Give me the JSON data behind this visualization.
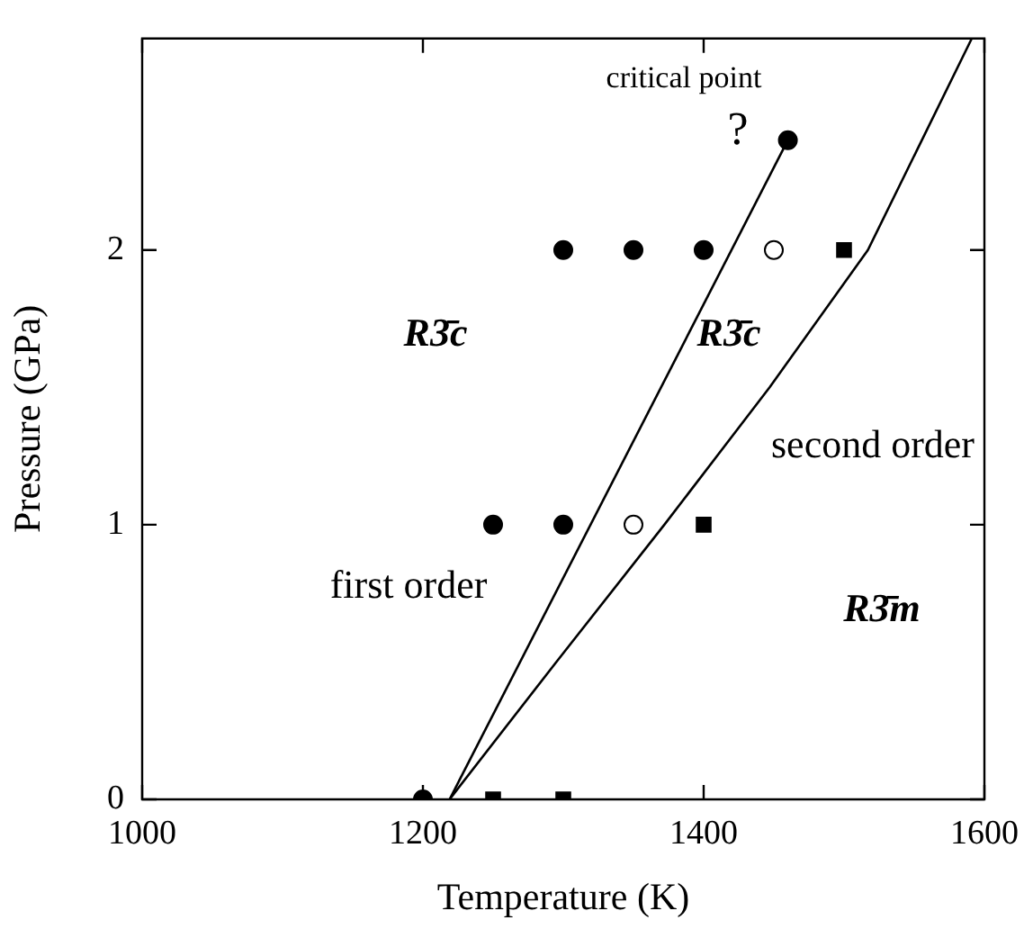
{
  "chart_data": {
    "type": "scatter",
    "xlabel": "Temperature (K)",
    "ylabel": "Pressure (GPa)",
    "xlim": [
      1000,
      1600
    ],
    "xticks": [
      1000,
      1200,
      1400,
      1600
    ],
    "ylim": [
      0,
      2.77
    ],
    "yticks": [
      0,
      1,
      2
    ],
    "grid": false,
    "legend": false,
    "series": [
      {
        "marker": "circle",
        "color": "#000000",
        "x": [
          1200,
          1250,
          1300,
          1300,
          1350,
          1400,
          1460
        ],
        "values": [
          0,
          1,
          1,
          2,
          2,
          2,
          2.4
        ]
      },
      {
        "marker": "circle",
        "color": "#ffffff",
        "x": [
          1350,
          1450
        ],
        "values": [
          1,
          2
        ]
      },
      {
        "marker": "square",
        "color": "#000000",
        "x": [
          1250,
          1300,
          1400,
          1500
        ],
        "values": [
          0,
          0,
          1,
          2
        ]
      },
      {
        "type": "line",
        "marker": "none",
        "color": "#000000",
        "x": [
          1219,
          1460
        ],
        "values": [
          0,
          2.4
        ]
      },
      {
        "type": "line",
        "marker": "none",
        "color": "#000000",
        "x": [
          1219,
          1295,
          1372,
          1447,
          1517,
          1591
        ],
        "values": [
          0,
          0.5,
          1,
          1.5,
          2,
          2.77
        ]
      }
    ],
    "annotations": [
      "critical point",
      "?",
      "R3̄c",
      "R3̄c",
      "second order",
      "first order",
      "R3̄m"
    ]
  }
}
